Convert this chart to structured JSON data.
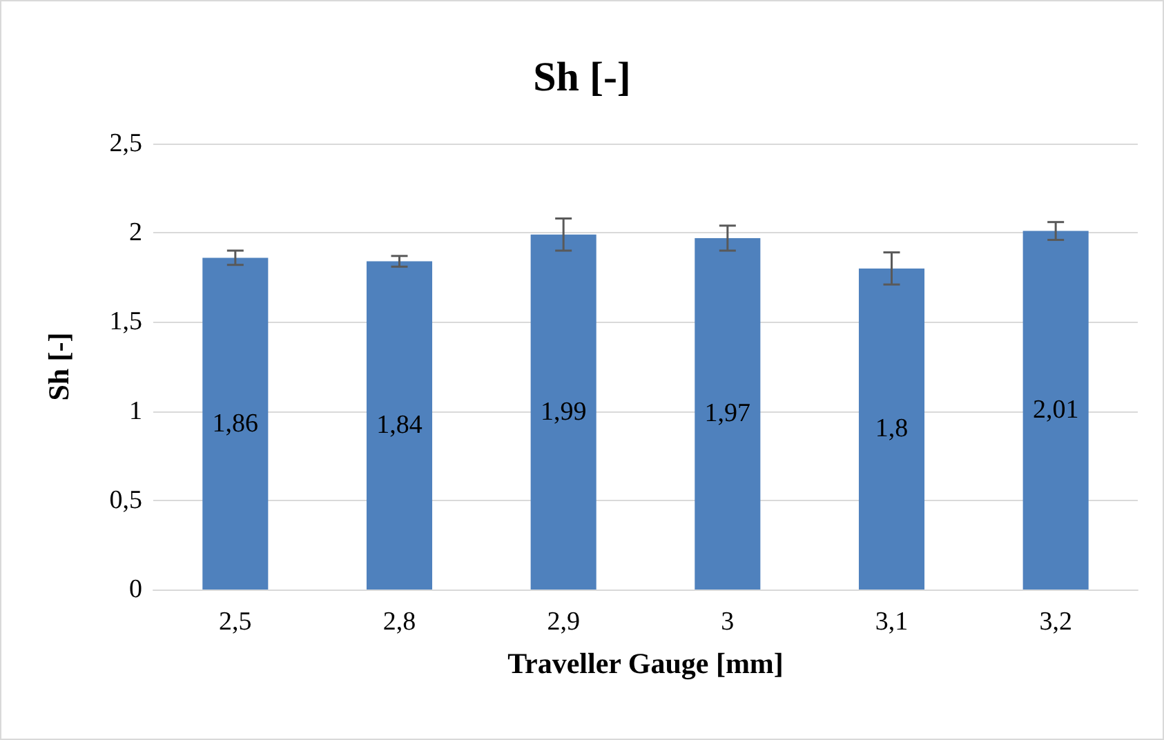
{
  "chart_data": {
    "type": "bar",
    "title": "Sh [-]",
    "xlabel": "Traveller Gauge [mm]",
    "ylabel": "Sh [-]",
    "categories": [
      "2,5",
      "2,8",
      "2,9",
      "3",
      "3,1",
      "3,2"
    ],
    "values": [
      1.86,
      1.84,
      1.99,
      1.97,
      1.8,
      2.01
    ],
    "errors": [
      0.04,
      0.03,
      0.09,
      0.07,
      0.09,
      0.05
    ],
    "color": "#4f81bd",
    "value_labels": [
      "1,86",
      "1,84",
      "1,99",
      "1,97",
      "1,8",
      "2,01"
    ],
    "ylim": [
      0,
      2.5
    ],
    "yticks": [
      {
        "value": 0,
        "label": "0"
      },
      {
        "value": 0.5,
        "label": "0,5"
      },
      {
        "value": 1,
        "label": "1"
      },
      {
        "value": 1.5,
        "label": "1,5"
      },
      {
        "value": 2,
        "label": "2"
      },
      {
        "value": 2.5,
        "label": "2,5"
      }
    ],
    "grid": "y"
  }
}
